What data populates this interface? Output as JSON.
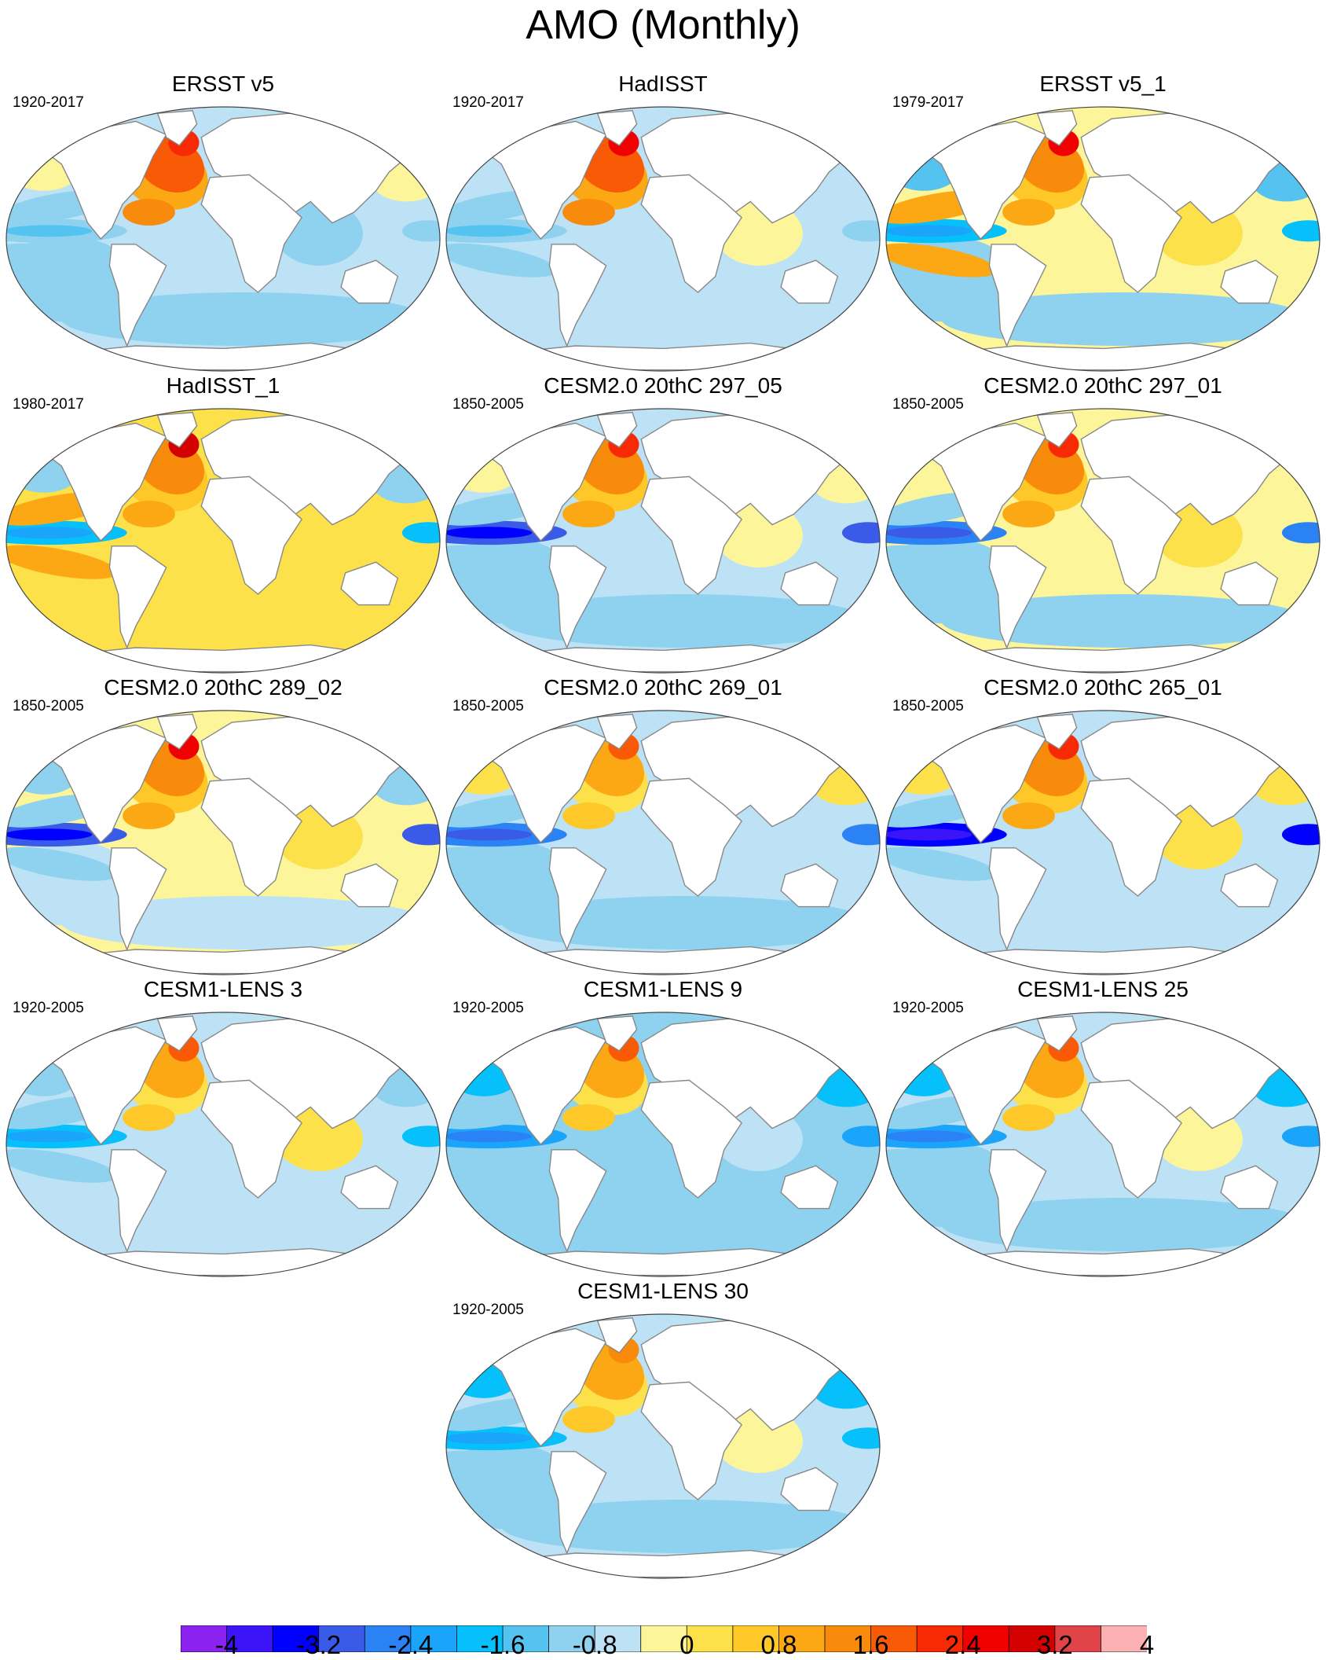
{
  "title": "AMO (Monthly)",
  "panels": [
    {
      "title": "ERSST v5",
      "period": "1920-2017"
    },
    {
      "title": "HadISST",
      "period": "1920-2017"
    },
    {
      "title": "ERSST v5_1",
      "period": "1979-2017"
    },
    {
      "title": "HadISST_1",
      "period": "1980-2017"
    },
    {
      "title": "CESM2.0 20thC 297_05",
      "period": "1850-2005"
    },
    {
      "title": "CESM2.0 20thC 297_01",
      "period": "1850-2005"
    },
    {
      "title": "CESM2.0 20thC 289_02",
      "period": "1850-2005"
    },
    {
      "title": "CESM2.0 20thC 269_01",
      "period": "1850-2005"
    },
    {
      "title": "CESM2.0 20thC 265_01",
      "period": "1850-2005"
    },
    {
      "title": "CESM1-LENS 3",
      "period": "1920-2005"
    },
    {
      "title": "CESM1-LENS 9",
      "period": "1920-2005"
    },
    {
      "title": "CESM1-LENS 25",
      "period": "1920-2005"
    },
    {
      "title": "CESM1-LENS 30",
      "period": "1920-2005"
    }
  ],
  "colorbar": {
    "labels": [
      "-4",
      "-3.2",
      "-2.4",
      "-1.6",
      "-0.8",
      "0",
      "0.8",
      "1.6",
      "2.4",
      "3.2",
      "4"
    ],
    "colors": [
      "#8c22f0",
      "#3c14fa",
      "#0000ff",
      "#3a5ae8",
      "#2a82f5",
      "#1aa4fa",
      "#05c0fa",
      "#55c3f0",
      "#8fd2f0",
      "#bde2f5",
      "#fdf59a",
      "#fde14a",
      "#fdc828",
      "#fba814",
      "#f88a0c",
      "#f85a05",
      "#f82a05",
      "#f00000",
      "#d20000",
      "#e04448",
      "#fcb2b2"
    ]
  },
  "colors": {
    "land": "#ffffff",
    "coastline": "#888888",
    "map_border": "#444444"
  }
}
